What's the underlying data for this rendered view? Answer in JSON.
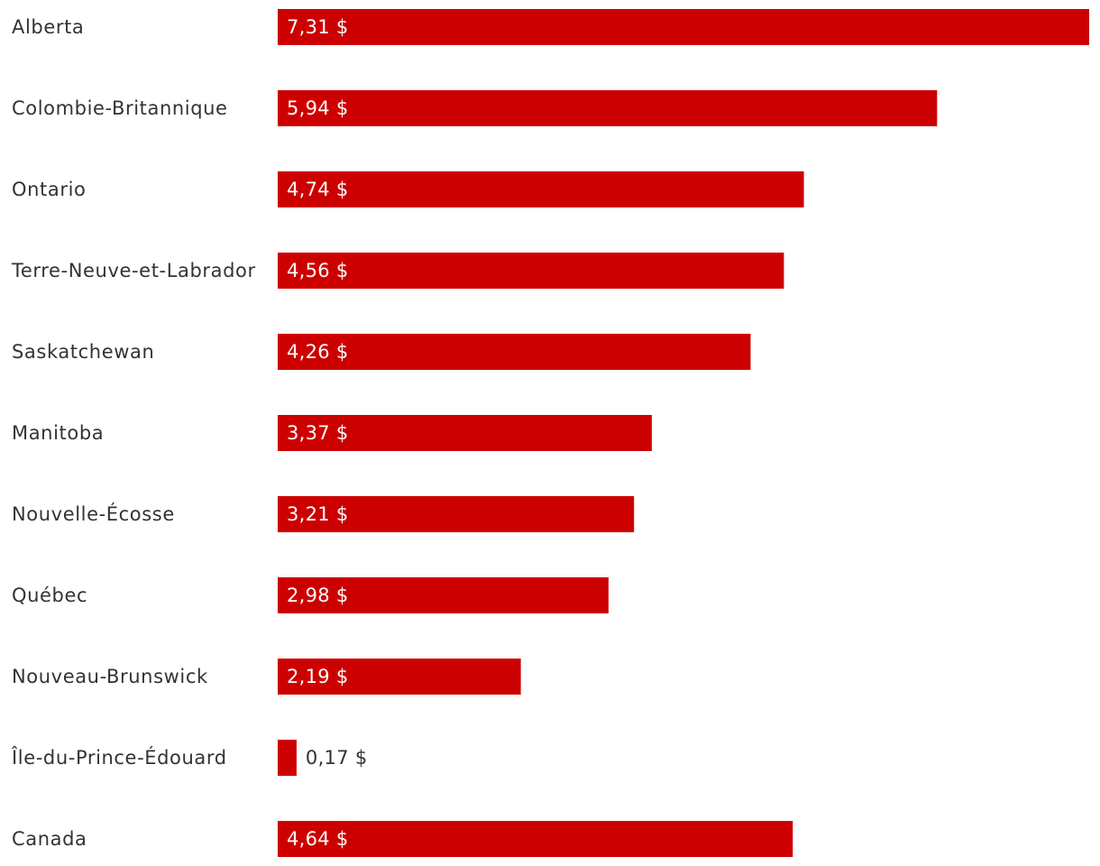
{
  "chart_data": {
    "type": "bar",
    "orientation": "horizontal",
    "title": "",
    "xlabel": "",
    "ylabel": "",
    "xlim": [
      0,
      7.31
    ],
    "grid": false,
    "legend": "none",
    "bar_color": "#cc0000",
    "label_inside_color": "#ffffff",
    "label_outside_color": "#333333",
    "categories": [
      "Alberta",
      "Colombie-Britannique",
      "Ontario",
      "Terre-Neuve-et-Labrador",
      "Saskatchewan",
      "Manitoba",
      "Nouvelle-Écosse",
      "Québec",
      "Nouveau-Brunswick",
      "Île-du-Prince-Édouard",
      "Canada"
    ],
    "values": [
      7.31,
      5.94,
      4.74,
      4.56,
      4.26,
      3.37,
      3.21,
      2.98,
      2.19,
      0.17,
      4.64
    ],
    "value_labels": [
      "7,31 $",
      "5,94 $",
      "4,74 $",
      "4,56 $",
      "4,26 $",
      "3,37 $",
      "3,21 $",
      "2,98 $",
      "2,19 $",
      "0,17 $",
      "4,64 $"
    ]
  }
}
